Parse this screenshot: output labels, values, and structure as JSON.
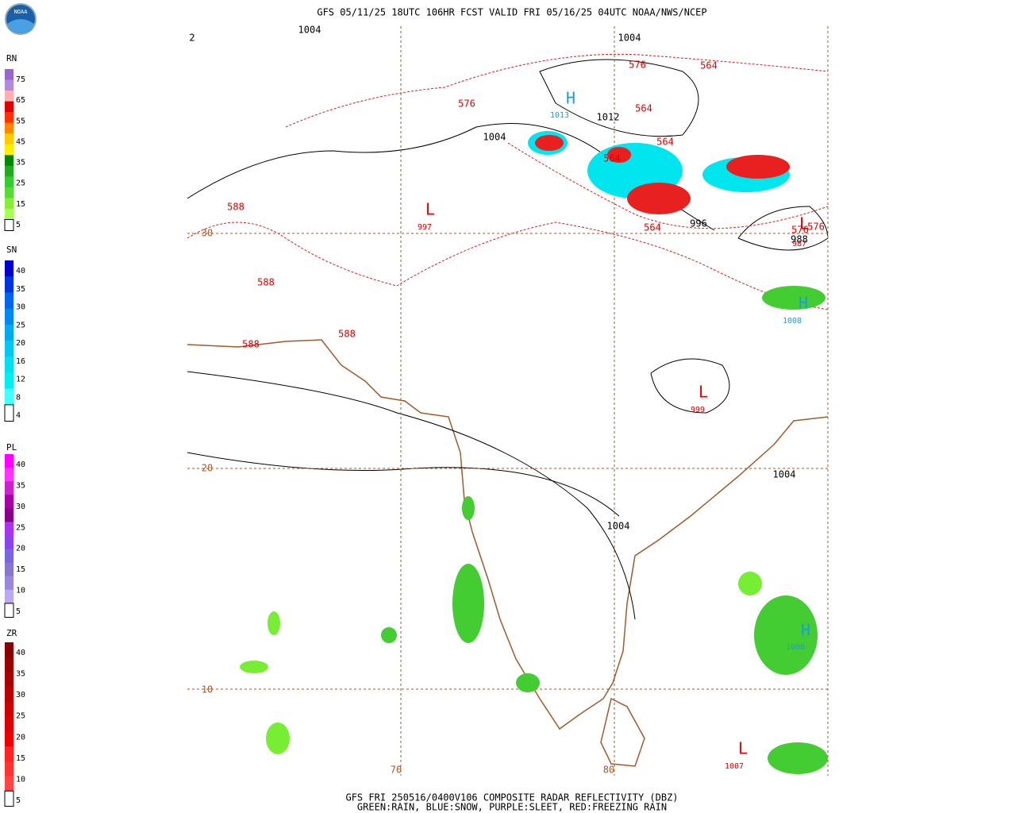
{
  "header": {
    "title": "GFS 05/11/25 18UTC 106HR FCST VALID FRI 05/16/25 04UTC NOAA/NWS/NCEP",
    "logo": "NOAA"
  },
  "legends": [
    {
      "name": "RN",
      "ticks": [
        75,
        65,
        55,
        45,
        35,
        25,
        15,
        5
      ]
    },
    {
      "name": "SN",
      "ticks": [
        40,
        35,
        30,
        25,
        20,
        16,
        12,
        8,
        4
      ]
    },
    {
      "name": "PL",
      "ticks": [
        40,
        35,
        30,
        25,
        20,
        15,
        10,
        5
      ]
    },
    {
      "name": "ZR",
      "ticks": [
        40,
        35,
        30,
        25,
        20,
        15,
        10,
        5
      ]
    }
  ],
  "map": {
    "isobar_labels": [
      "1004",
      "1004",
      "1012",
      "1004",
      "996",
      "988",
      "1004",
      "1004",
      "2"
    ],
    "height_labels": [
      "576",
      "564",
      "576",
      "564",
      "564",
      "588",
      "588",
      "588",
      "588",
      "564",
      "576",
      "576",
      "564"
    ],
    "centers": [
      {
        "symbol": "H",
        "value": "1013"
      },
      {
        "symbol": "L",
        "value": "997"
      },
      {
        "symbol": "L",
        "value": "999"
      },
      {
        "symbol": "H",
        "value": "1008"
      },
      {
        "symbol": "H",
        "value": "1008"
      },
      {
        "symbol": "L",
        "value": "1007"
      },
      {
        "symbol": "L",
        "value": "987"
      }
    ],
    "grid_labels": [
      "30",
      "20",
      "10",
      "70",
      "80"
    ]
  },
  "footer": {
    "line1": "GFS FRI 250516/0400V106 COMPOSITE RADAR REFLECTIVITY (DBZ)",
    "line2": "GREEN:RAIN, BLUE:SNOW, PURPLE:SLEET, RED:FREEZING RAIN"
  }
}
